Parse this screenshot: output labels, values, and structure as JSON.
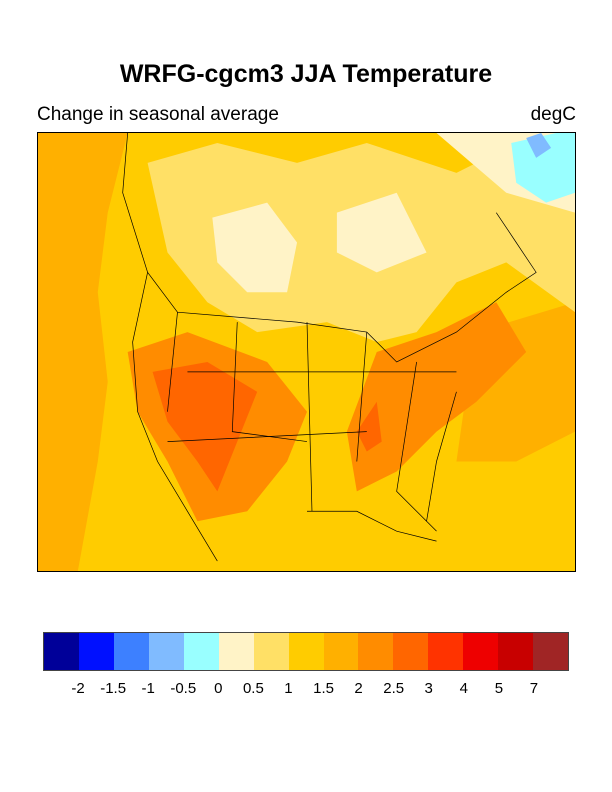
{
  "title": "WRFG-cgcm3 JJA Temperature",
  "subtitle": "Change in seasonal average",
  "units": "degC",
  "colorbar": {
    "colors": [
      "#000099",
      "#0010ff",
      "#3d80ff",
      "#80bbff",
      "#99ffff",
      "#fff3c7",
      "#ffe066",
      "#ffcc00",
      "#ffb000",
      "#ff8c00",
      "#ff6600",
      "#ff3300",
      "#ee0000",
      "#c80000",
      "#a02525"
    ],
    "labels": [
      "-2",
      "-1.5",
      "-1",
      "-0.5",
      "0",
      "0.5",
      "1",
      "1.5",
      "2",
      "2.5",
      "3",
      "4",
      "5",
      "7"
    ]
  }
}
